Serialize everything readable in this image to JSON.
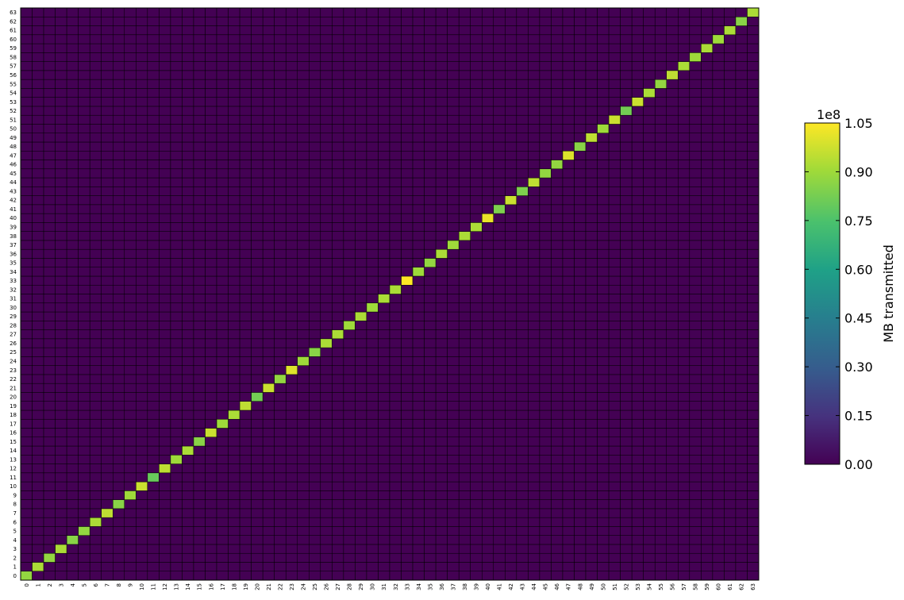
{
  "chart_data": {
    "type": "heatmap",
    "title": "",
    "xlabel": "",
    "ylabel": "",
    "x_categories": [
      "0",
      "1",
      "2",
      "3",
      "4",
      "5",
      "6",
      "7",
      "8",
      "9",
      "10",
      "11",
      "12",
      "13",
      "14",
      "15",
      "16",
      "17",
      "18",
      "19",
      "20",
      "21",
      "22",
      "23",
      "24",
      "25",
      "26",
      "27",
      "28",
      "29",
      "30",
      "31",
      "32",
      "33",
      "34",
      "35",
      "36",
      "37",
      "38",
      "39",
      "40",
      "41",
      "42",
      "43",
      "44",
      "45",
      "46",
      "47",
      "48",
      "49",
      "50",
      "51",
      "52",
      "53",
      "54",
      "55",
      "56",
      "57",
      "58",
      "59",
      "60",
      "61",
      "62",
      "63"
    ],
    "y_categories": [
      "0",
      "1",
      "2",
      "3",
      "4",
      "5",
      "6",
      "7",
      "8",
      "9",
      "10",
      "11",
      "12",
      "13",
      "14",
      "15",
      "16",
      "17",
      "18",
      "19",
      "20",
      "21",
      "22",
      "23",
      "24",
      "25",
      "26",
      "27",
      "28",
      "29",
      "30",
      "31",
      "32",
      "33",
      "34",
      "35",
      "36",
      "37",
      "38",
      "39",
      "40",
      "41",
      "42",
      "43",
      "44",
      "45",
      "46",
      "47",
      "48",
      "49",
      "50",
      "51",
      "52",
      "53",
      "54",
      "55",
      "56",
      "57",
      "58",
      "59",
      "60",
      "61",
      "62",
      "63"
    ],
    "y_origin": "bottom",
    "off_diagonal_value": 0,
    "diagonal_values": [
      0.88,
      0.92,
      0.88,
      0.92,
      0.86,
      0.88,
      0.92,
      0.95,
      0.86,
      0.9,
      0.97,
      0.8,
      0.95,
      0.9,
      0.92,
      0.86,
      0.97,
      0.9,
      0.92,
      0.95,
      0.82,
      0.97,
      0.88,
      1.0,
      0.9,
      0.86,
      0.92,
      0.92,
      0.9,
      0.92,
      0.9,
      0.92,
      0.92,
      1.05,
      0.9,
      0.88,
      0.92,
      0.9,
      0.92,
      0.92,
      1.02,
      0.84,
      0.97,
      0.84,
      0.95,
      0.88,
      0.88,
      1.0,
      0.86,
      0.95,
      0.9,
      0.97,
      0.82,
      0.97,
      0.92,
      0.88,
      0.95,
      0.92,
      0.9,
      0.92,
      0.9,
      0.92,
      0.86,
      0.92
    ],
    "value_multiplier_label": "1e8",
    "colorbar": {
      "label": "MB transmitted",
      "vmin": 0.0,
      "vmax": 1.05,
      "ticks": [
        "0.00",
        "0.15",
        "0.30",
        "0.45",
        "0.60",
        "0.75",
        "0.90",
        "1.05"
      ],
      "colormap": "viridis"
    },
    "grid": true
  }
}
